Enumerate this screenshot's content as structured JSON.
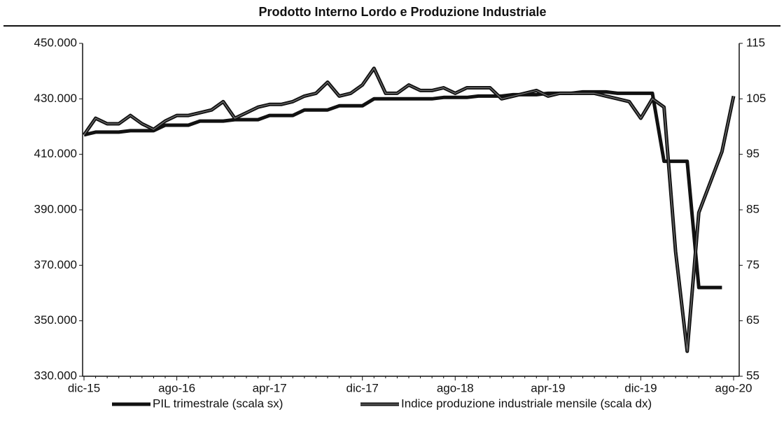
{
  "chart_data": {
    "type": "line",
    "title": "Prodotto Interno Lordo e Produzione Industriale",
    "categories": [
      "dic-15",
      null,
      null,
      null,
      null,
      null,
      null,
      null,
      "ago-16",
      null,
      null,
      null,
      null,
      null,
      null,
      null,
      "apr-17",
      null,
      null,
      null,
      null,
      null,
      null,
      null,
      "dic-17",
      null,
      null,
      null,
      null,
      null,
      null,
      null,
      "ago-18",
      null,
      null,
      null,
      null,
      null,
      null,
      null,
      "apr-19",
      null,
      null,
      null,
      null,
      null,
      null,
      null,
      "dic-19",
      null,
      null,
      null,
      null,
      null,
      null,
      null,
      "ago-20"
    ],
    "series": [
      {
        "name": "PIL trimestrale (scala sx)",
        "color": "#111111",
        "axis": "y",
        "values": [
          417,
          418,
          418,
          418,
          418.5,
          418.5,
          418.5,
          420.5,
          420.5,
          420.5,
          422,
          422,
          422,
          422.5,
          422.5,
          422.5,
          424,
          424,
          424,
          426,
          426,
          426,
          427.5,
          427.5,
          427.5,
          430,
          430,
          430,
          430,
          430,
          430,
          430.5,
          430.5,
          430.5,
          431,
          431,
          431,
          431.5,
          431.5,
          431.5,
          432,
          432,
          432,
          432.5,
          432.5,
          432.5,
          432,
          432,
          432,
          432,
          407.5,
          407.5,
          407.5,
          362,
          362,
          362,
          null
        ]
      },
      {
        "name": "Indice produzione industriale mensile (scala dx)",
        "color": "#111111",
        "axis": "y2",
        "values": [
          98.5,
          101.5,
          100.5,
          100.5,
          102,
          100.5,
          99.5,
          101,
          102,
          102,
          102.5,
          103,
          104.5,
          101.5,
          102.5,
          103.5,
          104,
          104,
          104.5,
          105.5,
          106,
          108,
          105.5,
          106,
          107.5,
          110.5,
          106,
          106,
          107.5,
          106.5,
          106.5,
          107,
          106,
          107,
          107,
          107,
          105,
          105.5,
          106,
          106.5,
          105.5,
          106,
          106,
          106,
          106,
          105.5,
          105,
          104.5,
          101.5,
          105,
          103.5,
          77.5,
          59.5,
          84.5,
          90,
          95.5,
          105.5
        ]
      }
    ],
    "ylim": [
      330,
      450
    ],
    "yticks": [
      {
        "value": 330,
        "label": "330.000"
      },
      {
        "value": 350,
        "label": "350.000"
      },
      {
        "value": 370,
        "label": "370.000"
      },
      {
        "value": 390,
        "label": "390.000"
      },
      {
        "value": 410,
        "label": "410.000"
      },
      {
        "value": 430,
        "label": "430.000"
      },
      {
        "value": 450,
        "label": "450.000"
      }
    ],
    "y2lim": [
      55,
      115
    ],
    "y2ticks": [
      55,
      65,
      75,
      85,
      95,
      105,
      115
    ],
    "grid": false
  }
}
